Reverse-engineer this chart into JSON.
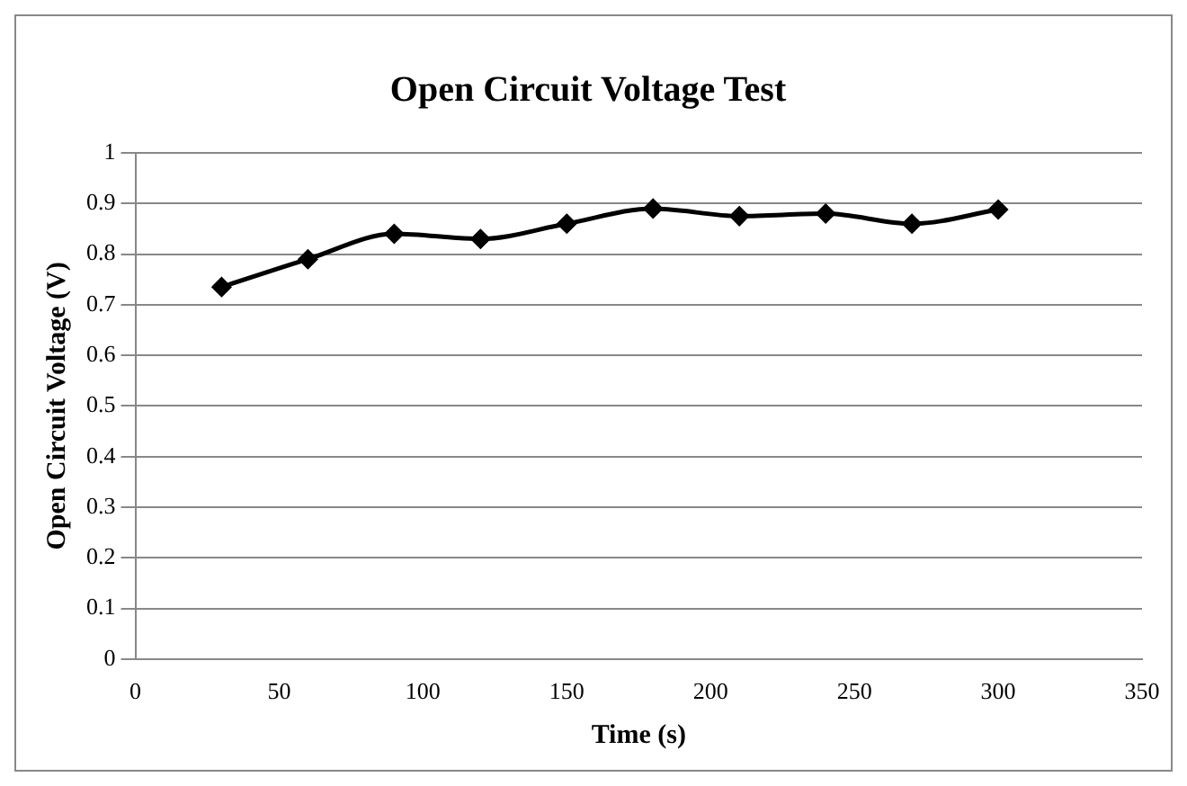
{
  "chart_data": {
    "type": "line",
    "title": "Open Circuit Voltage Test",
    "xlabel": "Time (s)",
    "ylabel": "Open Circuit Voltage (V)",
    "x": [
      30,
      60,
      90,
      120,
      150,
      180,
      210,
      240,
      270,
      300
    ],
    "series": [
      {
        "color": "#000000",
        "values": [
          0.735,
          0.79,
          0.84,
          0.83,
          0.86,
          0.89,
          0.875,
          0.88,
          0.86,
          0.888
        ]
      }
    ],
    "xlim": [
      0,
      350
    ],
    "xticks": [
      0,
      50,
      100,
      150,
      200,
      250,
      300,
      350
    ],
    "ylim": [
      0,
      1
    ],
    "yticks": [
      0,
      0.1,
      0.2,
      0.3,
      0.4,
      0.5,
      0.6,
      0.7,
      0.8,
      0.9,
      1
    ],
    "grid": "y",
    "legend": false,
    "marker": "diamond",
    "line_style": "solid"
  }
}
